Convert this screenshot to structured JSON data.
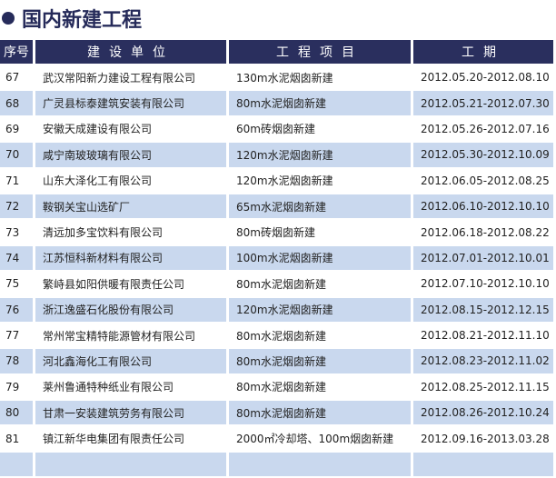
{
  "title": "国内新建工程",
  "colors": {
    "header_bg": "#2a2f5e",
    "row_alt": "#c9d8ee",
    "title": "#262b5a"
  },
  "headers": [
    "序号",
    "建设单位",
    "工程项目",
    "工期"
  ],
  "rows": [
    [
      "67",
      "武汉常阳新力建设工程有限公司",
      "130m水泥烟囱新建",
      "2012.05.20-2012.08.10"
    ],
    [
      "68",
      "广灵县标泰建筑安装有限公司",
      "80m水泥烟囱新建",
      "2012.05.21-2012.07.30"
    ],
    [
      "69",
      "安徽天成建设有限公司",
      "60m砖烟囱新建",
      "2012.05.26-2012.07.16"
    ],
    [
      "70",
      "咸宁南玻玻璃有限公司",
      "120m水泥烟囱新建",
      "2012.05.30-2012.10.09"
    ],
    [
      "71",
      "山东大泽化工有限公司",
      "120m水泥烟囱新建",
      "2012.06.05-2012.08.25"
    ],
    [
      "72",
      "鞍钢关宝山选矿厂",
      "65m水泥烟囱新建",
      "2012.06.10-2012.10.10"
    ],
    [
      "73",
      "清远加多宝饮料有限公司",
      "80m砖烟囱新建",
      "2012.06.18-2012.08.22"
    ],
    [
      "74",
      "江苏恒科新材料有限公司",
      "100m水泥烟囱新建",
      "2012.07.01-2012.10.01"
    ],
    [
      "75",
      "繁峙县如阳供暖有限责任公司",
      "80m水泥烟囱新建",
      "2012.07.10-2012.10.10"
    ],
    [
      "76",
      "浙江逸盛石化股份有限公司",
      "120m水泥烟囱新建",
      "2012.08.15-2012.12.15"
    ],
    [
      "77",
      "常州常宝精特能源管材有限公司",
      "80m水泥烟囱新建",
      "2012.08.21-2012.11.10"
    ],
    [
      "78",
      "河北鑫海化工有限公司",
      "80m水泥烟囱新建",
      "2012.08.23-2012.11.02"
    ],
    [
      "79",
      "莱州鲁通特种纸业有限公司",
      "80m水泥烟囱新建",
      "2012.08.25-2012.11.15"
    ],
    [
      "80",
      "甘肃一安装建筑劳务有限公司",
      "80m水泥烟囱新建",
      "2012.08.26-2012.10.24"
    ],
    [
      "81",
      "镇江新华电集团有限责任公司",
      "2000㎡冷却塔、100m烟囱新建",
      "2012.09.16-2013.03.28"
    ]
  ]
}
